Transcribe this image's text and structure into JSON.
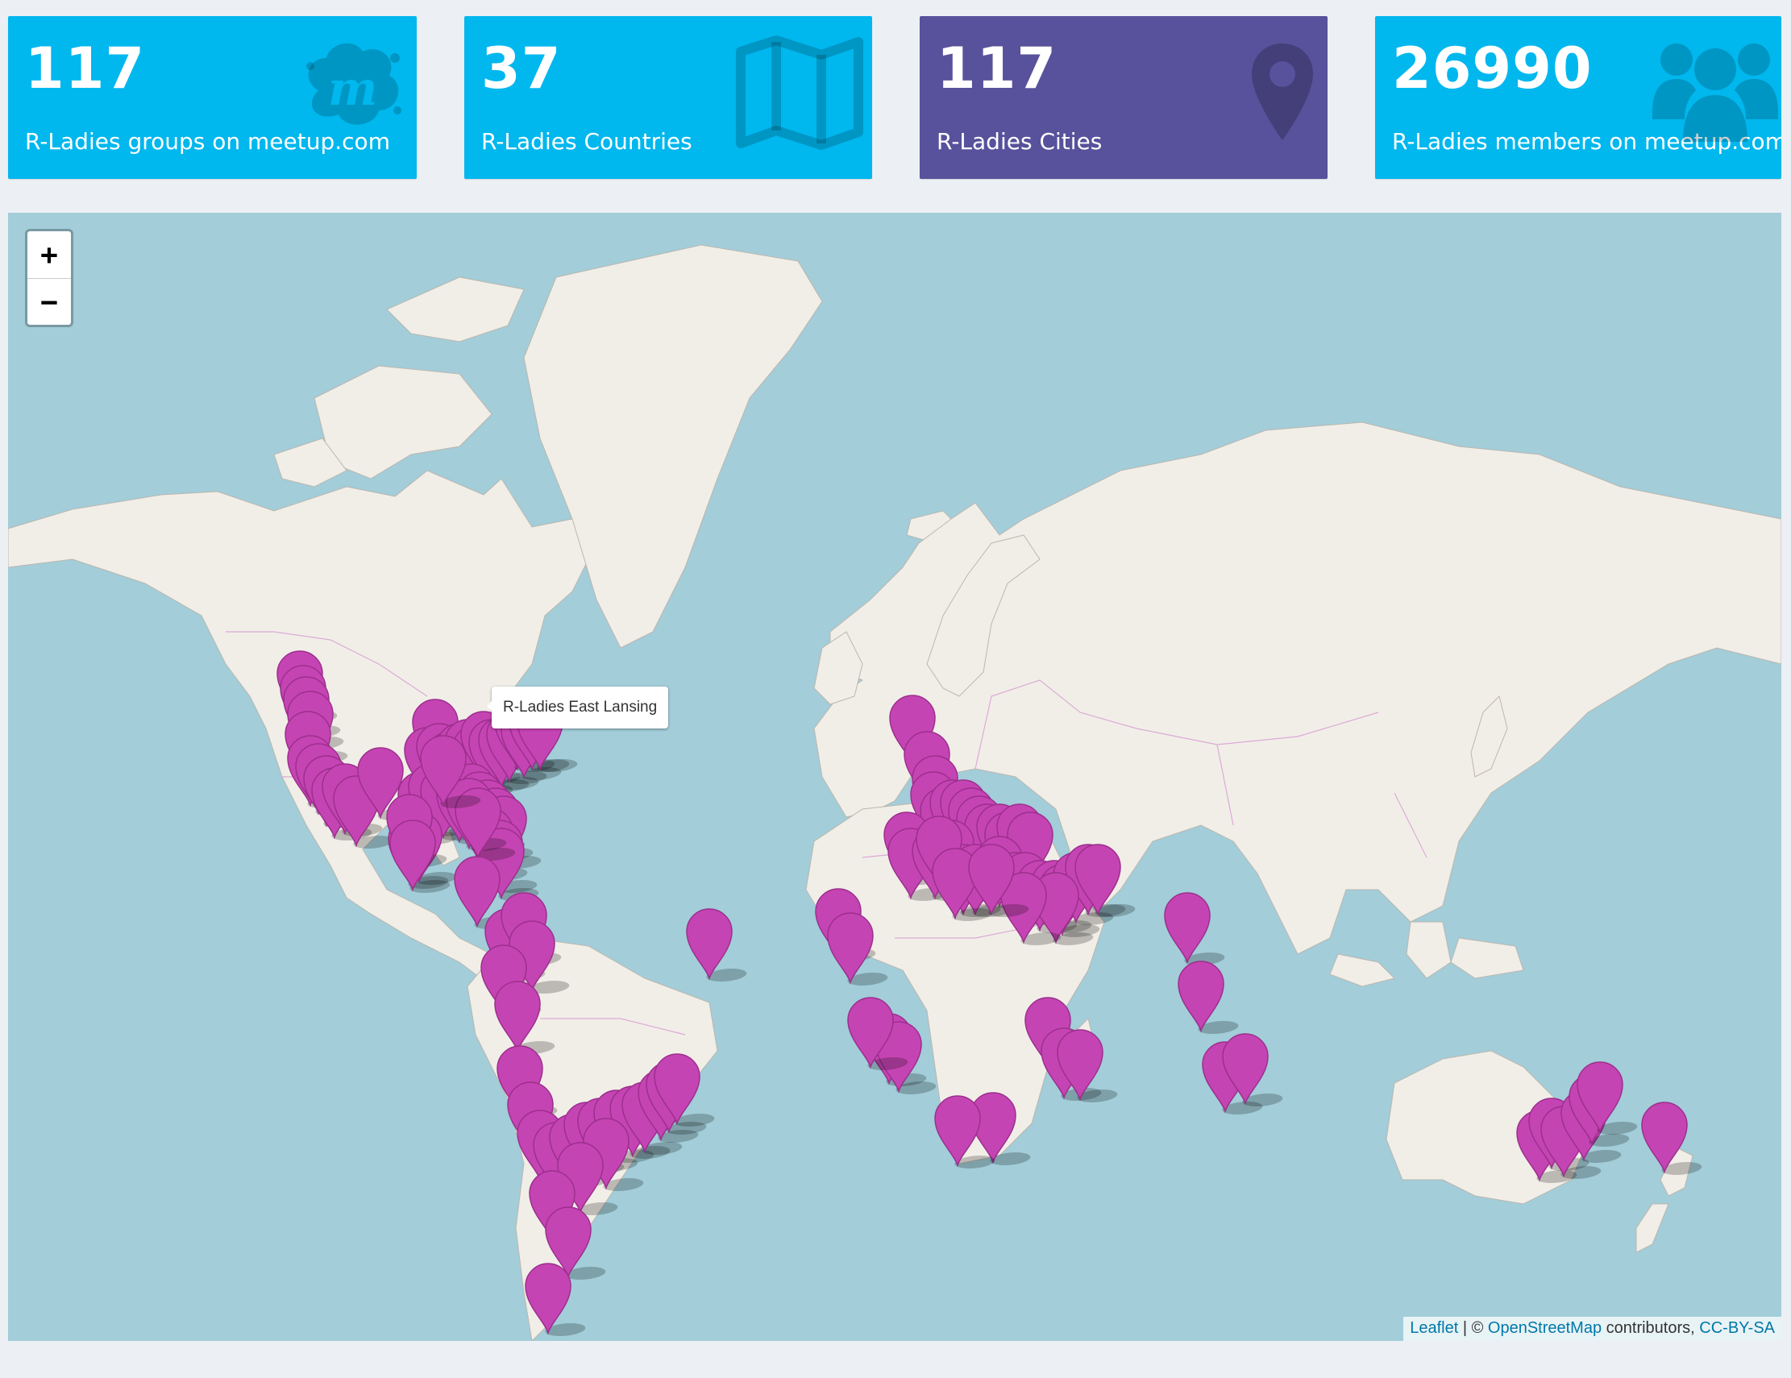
{
  "stats": [
    {
      "value": "117",
      "label": "R-Ladies groups on meetup.com",
      "color": "#00b7ee",
      "icon": "meetup-logo-icon"
    },
    {
      "value": "37",
      "label": "R-Ladies Countries",
      "color": "#00b7ee",
      "icon": "map-icon"
    },
    {
      "value": "117",
      "label": "R-Ladies Cities",
      "color": "#58519b",
      "icon": "map-pin-icon"
    },
    {
      "value": "26990",
      "label": "R-Ladies members on meetup.com",
      "color": "#00b7ee",
      "icon": "users-icon"
    }
  ],
  "map": {
    "zoom_in": "+",
    "zoom_out": "−",
    "tooltip": "R-Ladies East Lansing",
    "marker_color": "#c544b3",
    "ocean_color": "#a2cdd9",
    "land_color": "#f1eee8",
    "attribution": {
      "leaflet": "Leaflet",
      "sep1": " | © ",
      "osm": "OpenStreetMap",
      "middle": " contributors, ",
      "license": "CC-BY-SA"
    }
  }
}
